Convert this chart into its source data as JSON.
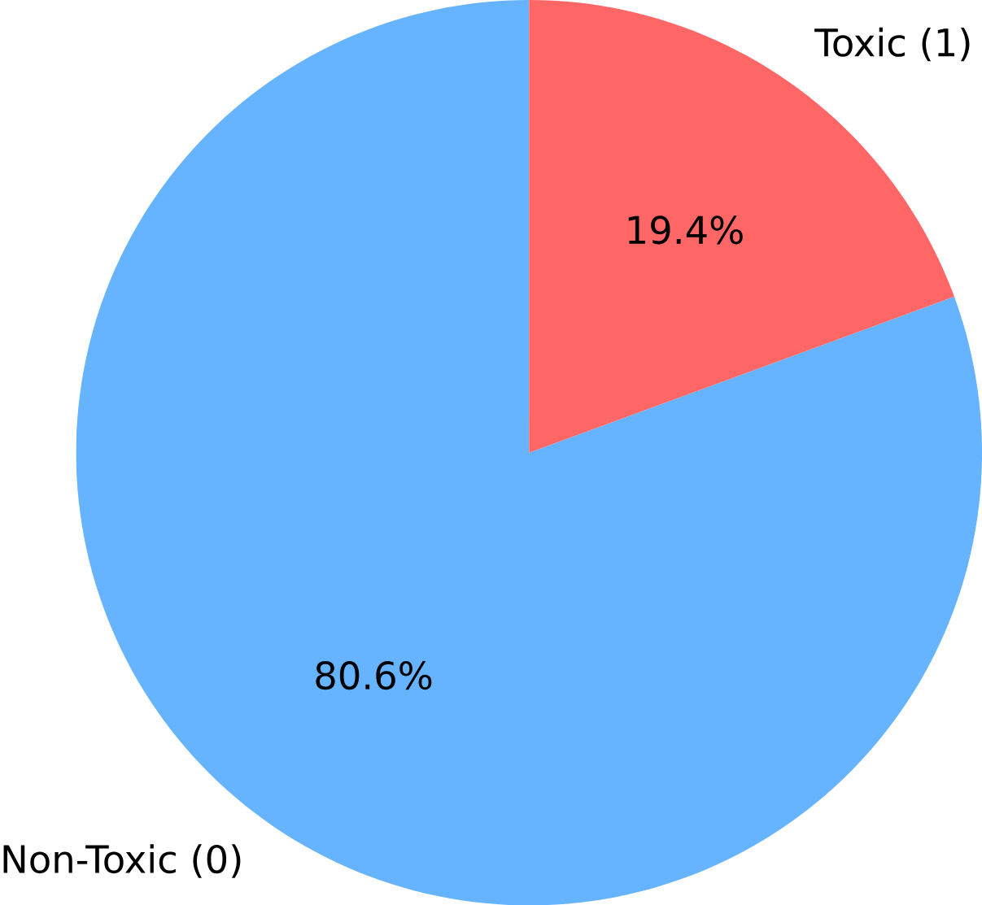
{
  "chart_data": {
    "type": "pie",
    "categories": [
      "Non-Toxic (0)",
      "Toxic (1)"
    ],
    "values": [
      80.6,
      19.4
    ],
    "colors": [
      "#66b3ff",
      "#ff6666"
    ],
    "value_labels": [
      "80.6%",
      "19.4%"
    ]
  }
}
